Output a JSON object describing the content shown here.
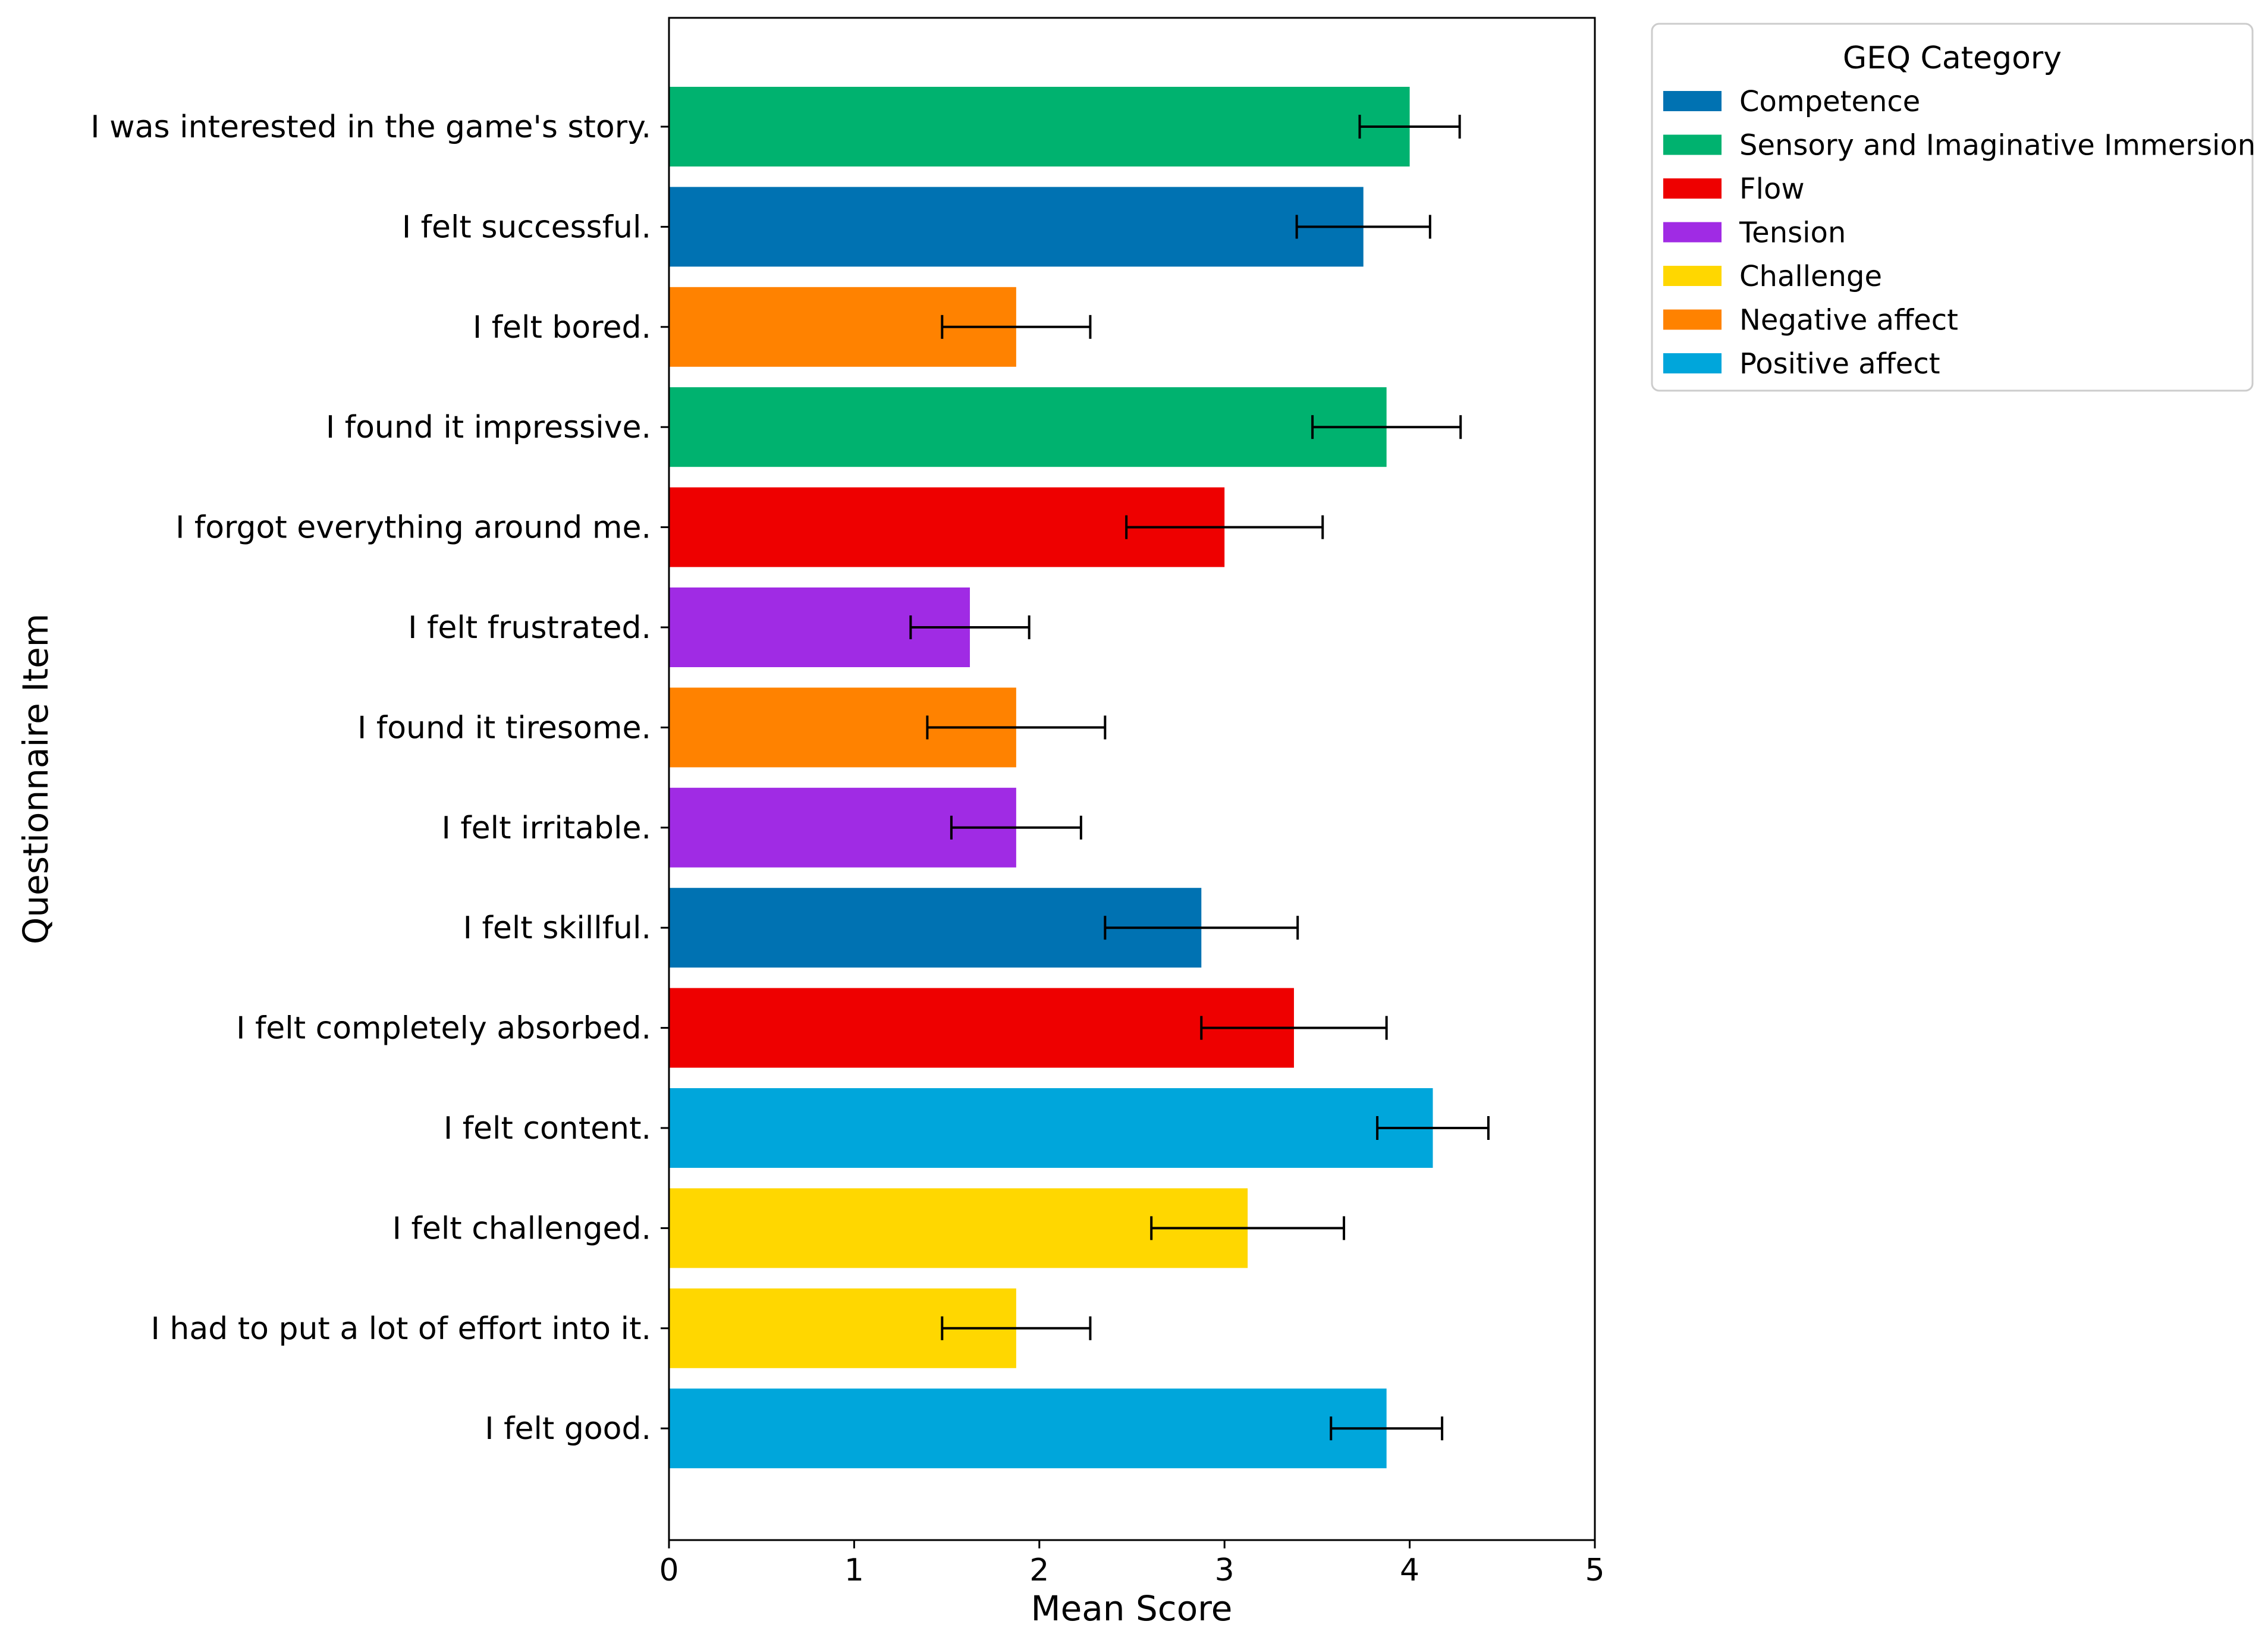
{
  "chart_data": {
    "type": "bar",
    "orientation": "horizontal",
    "xlabel": "Mean Score",
    "ylabel": "Questionnaire Item",
    "xlim": [
      0,
      5
    ],
    "xticks": [
      "0",
      "1",
      "2",
      "3",
      "4",
      "5"
    ],
    "grid": false,
    "legend": {
      "title": "GEQ Category",
      "placement": "outside upper right",
      "entries": [
        {
          "name": "Competence",
          "color": "#0072b2"
        },
        {
          "name": "Sensory and Imaginative Immersion",
          "color": "#00b26f"
        },
        {
          "name": "Flow",
          "color": "#ee0000"
        },
        {
          "name": "Tension",
          "color": "#a02be4"
        },
        {
          "name": "Challenge",
          "color": "#ffd700"
        },
        {
          "name": "Negative affect",
          "color": "#ff8200"
        },
        {
          "name": "Positive affect",
          "color": "#00a6db"
        }
      ]
    },
    "items": [
      {
        "label": "I was interested in the game's story.",
        "category": "Sensory and Imaginative Immersion",
        "value": 4.0,
        "error": 0.27
      },
      {
        "label": "I felt successful.",
        "category": "Competence",
        "value": 3.75,
        "error": 0.36
      },
      {
        "label": "I felt bored.",
        "category": "Negative affect",
        "value": 1.875,
        "error": 0.4
      },
      {
        "label": "I found it impressive.",
        "category": "Sensory and Imaginative Immersion",
        "value": 3.875,
        "error": 0.4
      },
      {
        "label": "I forgot everything around me.",
        "category": "Flow",
        "value": 3.0,
        "error": 0.53
      },
      {
        "label": "I felt frustrated.",
        "category": "Tension",
        "value": 1.625,
        "error": 0.32
      },
      {
        "label": "I found it tiresome.",
        "category": "Negative affect",
        "value": 1.875,
        "error": 0.48
      },
      {
        "label": "I felt irritable.",
        "category": "Tension",
        "value": 1.875,
        "error": 0.35
      },
      {
        "label": "I felt skillful.",
        "category": "Competence",
        "value": 2.875,
        "error": 0.52
      },
      {
        "label": "I felt completely absorbed.",
        "category": "Flow",
        "value": 3.375,
        "error": 0.5
      },
      {
        "label": "I felt content.",
        "category": "Positive affect",
        "value": 4.125,
        "error": 0.3
      },
      {
        "label": "I felt challenged.",
        "category": "Challenge",
        "value": 3.125,
        "error": 0.52
      },
      {
        "label": "I had to put a lot of effort into it.",
        "category": "Challenge",
        "value": 1.875,
        "error": 0.4
      },
      {
        "label": "I felt good.",
        "category": "Positive affect",
        "value": 3.875,
        "error": 0.3
      }
    ]
  }
}
